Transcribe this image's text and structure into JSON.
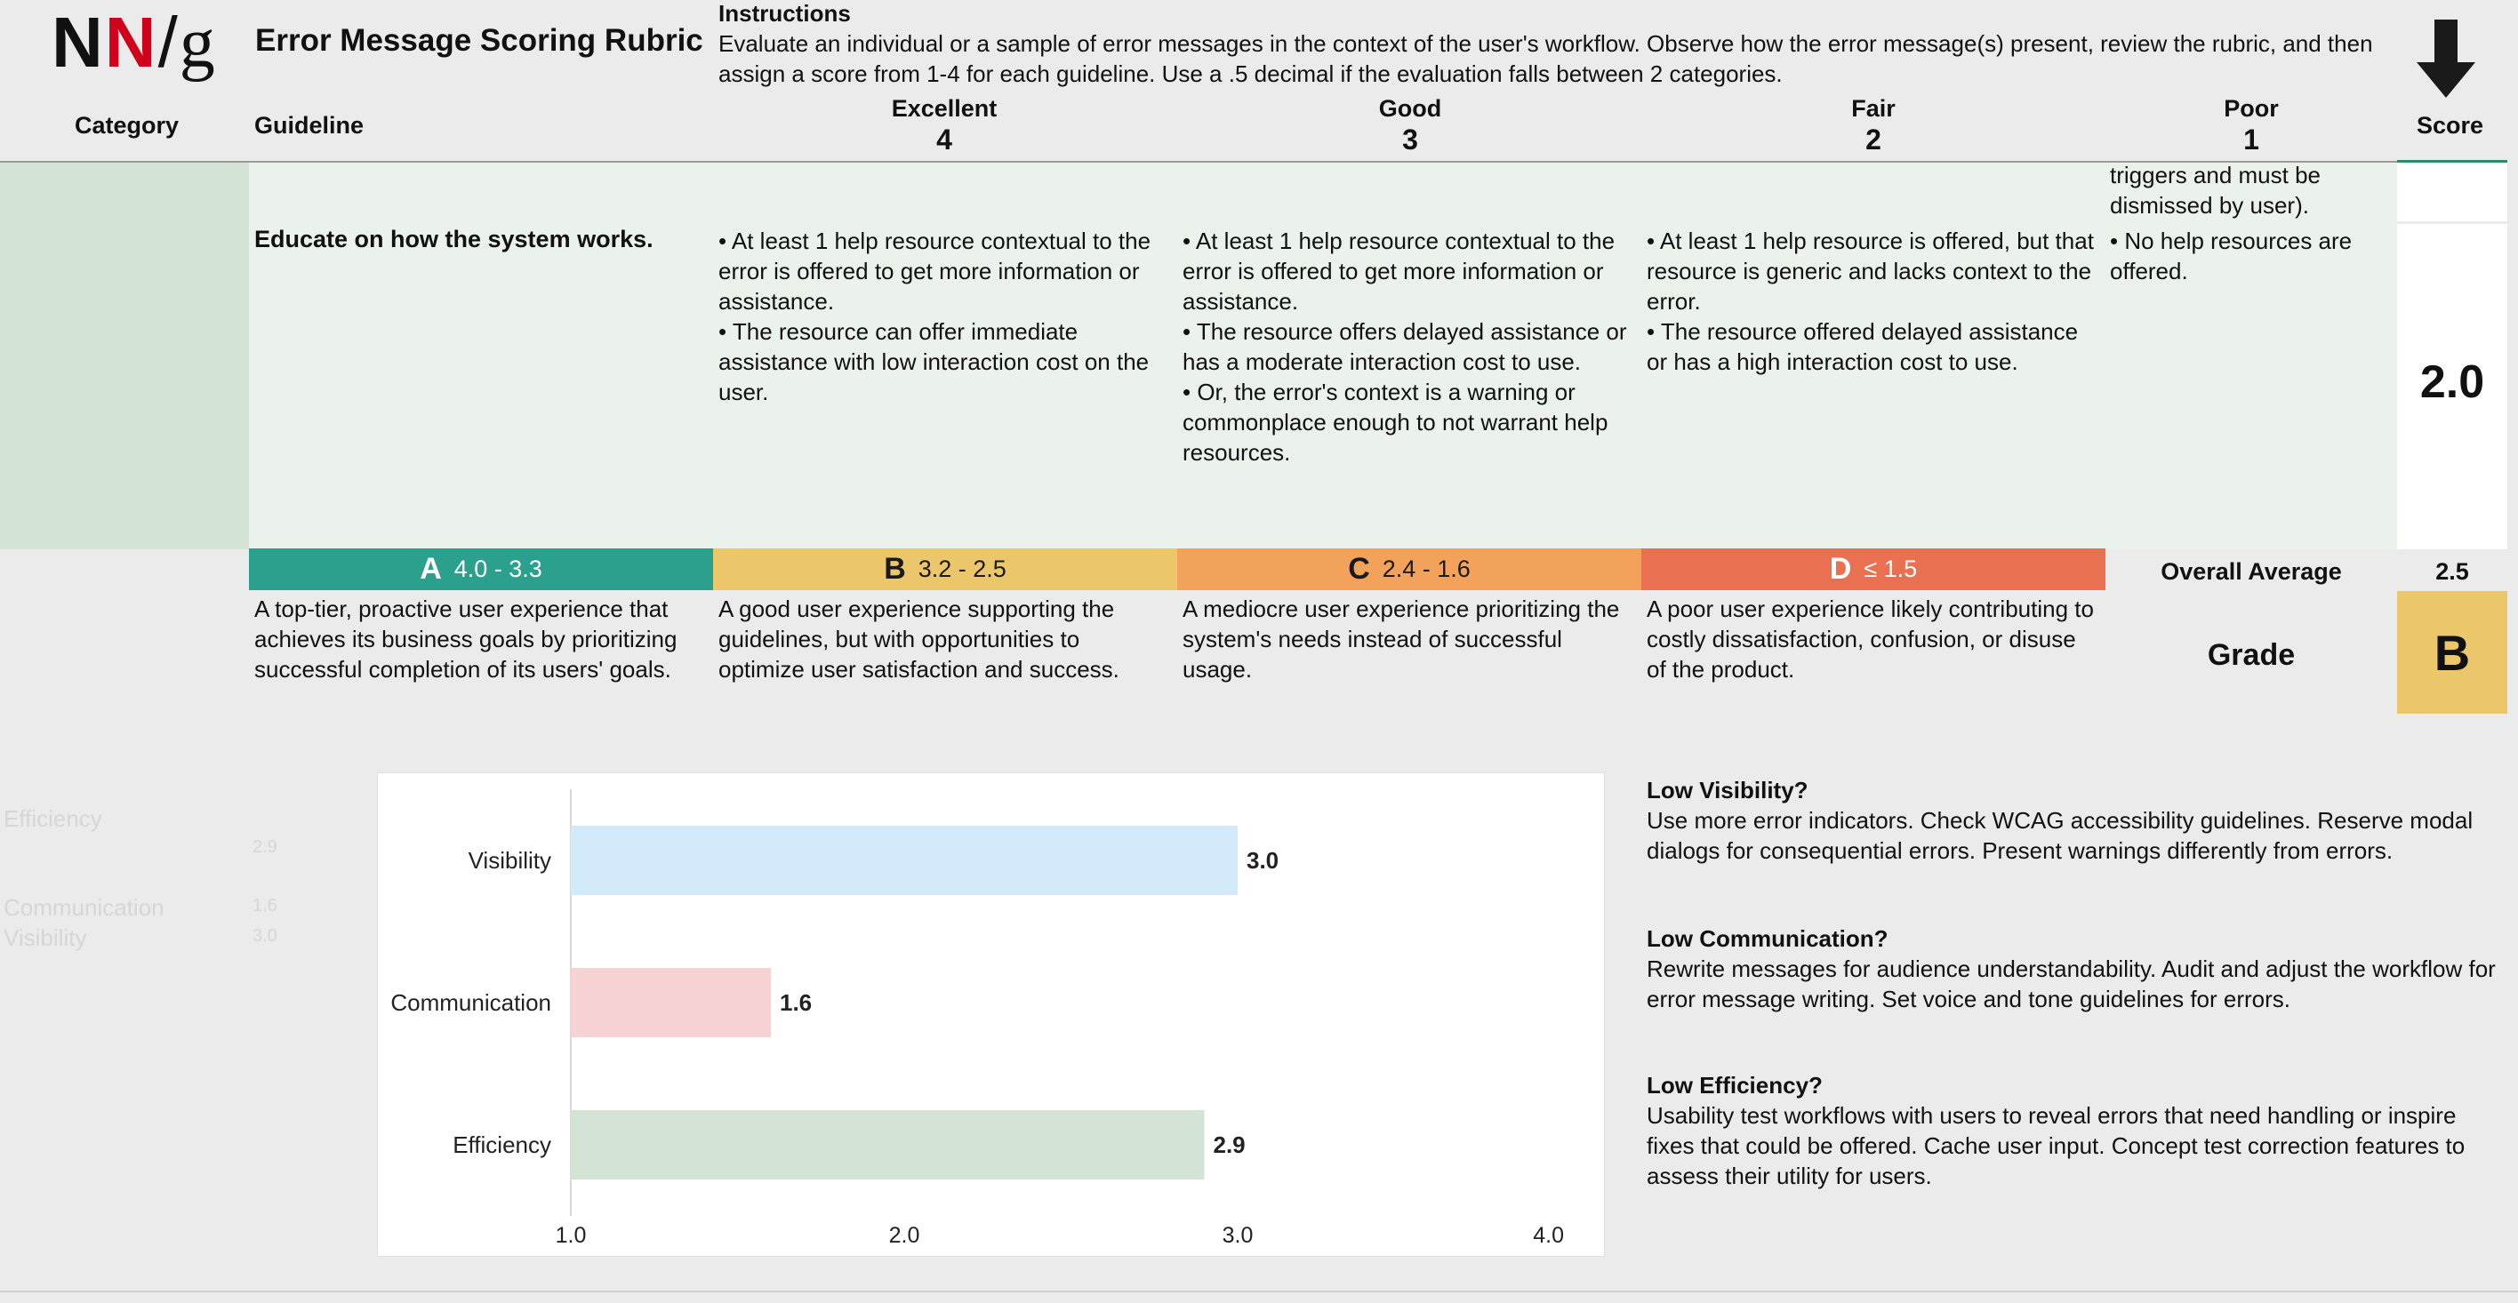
{
  "header": {
    "logo": {
      "n1": "N",
      "n2": "N",
      "slash": "/",
      "g": "g"
    },
    "title": "Error Message Scoring Rubric",
    "instructions_title": "Instructions",
    "instructions_text": "Evaluate an individual or a sample of error messages in the context of the user's workflow. Observe how the error message(s) present, review the rubric, and then assign a score from 1-4 for each guideline. Use a .5 decimal if the evaluation falls between 2 categories.",
    "col_category": "Category",
    "col_guideline": "Guideline",
    "col_score": "Score",
    "levels": [
      {
        "name": "Excellent",
        "num": "4"
      },
      {
        "name": "Good",
        "num": "3"
      },
      {
        "name": "Fair",
        "num": "2"
      },
      {
        "name": "Poor",
        "num": "1"
      }
    ]
  },
  "row": {
    "prev_poor_text": "triggers and must be dismissed by user).",
    "guideline": "Educate on how the system works.",
    "excellent": "• At least 1 help resource contextual to the error is offered to get more information or assistance.\n• The resource can offer immediate assistance with low interaction cost on the user.",
    "good": "• At least 1 help resource contextual to the error is offered to get more information or assistance.\n• The resource offers delayed assistance or has a moderate interaction cost to use.\n• Or, the error's context is a warning or commonplace enough to not warrant help resources.",
    "fair": "• At least 1 help resource is offered, but that resource is generic and lacks context to the error.\n• The resource offered delayed assistance or has a high interaction cost to use.",
    "poor": "• No help resources are offered.",
    "score": "2.0"
  },
  "grades": [
    {
      "letter": "A",
      "range": "4.0 - 3.3",
      "desc": "A top-tier, proactive user experience that achieves its business goals by prioritizing successful completion of its users' goals."
    },
    {
      "letter": "B",
      "range": "3.2 - 2.5",
      "desc": "A good user experience supporting the guidelines, but with opportunities to optimize user satisfaction and success."
    },
    {
      "letter": "C",
      "range": "2.4 - 1.6",
      "desc": "A mediocre user experience prioritizing the system's needs instead of successful usage."
    },
    {
      "letter": "D",
      "range": "≤ 1.5",
      "desc": "A poor user experience likely contributing to costly dissatisfaction, confusion, or disuse of the product."
    }
  ],
  "overall": {
    "label": "Overall Average",
    "value": "2.5",
    "grade_label": "Grade",
    "grade": "B"
  },
  "faded": {
    "efficiency": "Efficiency",
    "communication": "Communication",
    "visibility": "Visibility",
    "v1": "2.9",
    "v2": "1.6",
    "v3": "3.0"
  },
  "chart_data": {
    "type": "bar",
    "orientation": "horizontal",
    "categories": [
      "Visibility",
      "Communication",
      "Efficiency"
    ],
    "values": [
      3.0,
      1.6,
      2.9
    ],
    "value_labels": [
      "3.0",
      "1.6",
      "2.9"
    ],
    "colors": [
      "#d3eafb",
      "#f6d2d3",
      "#d3e3d5"
    ],
    "xlim": [
      1.0,
      4.0
    ],
    "ticks": [
      1.0,
      2.0,
      3.0,
      4.0
    ],
    "tick_labels": [
      "1.0",
      "2.0",
      "3.0",
      "4.0"
    ],
    "title": "",
    "xlabel": "",
    "ylabel": ""
  },
  "tips": [
    {
      "title": "Low Visibility?",
      "text": "Use more error indicators. Check WCAG accessibility guidelines. Reserve modal dialogs for consequential errors. Present warnings differently from errors."
    },
    {
      "title": "Low Communication?",
      "text": "Rewrite messages for audience understandability. Audit and adjust the workflow for error message writing. Set voice and tone guidelines for errors."
    },
    {
      "title": "Low Efficiency?",
      "text": "Usability test workflows with users to reveal errors that need handling or inspire fixes that could be offered. Cache user input. Concept test correction features to assess their utility for users."
    }
  ]
}
